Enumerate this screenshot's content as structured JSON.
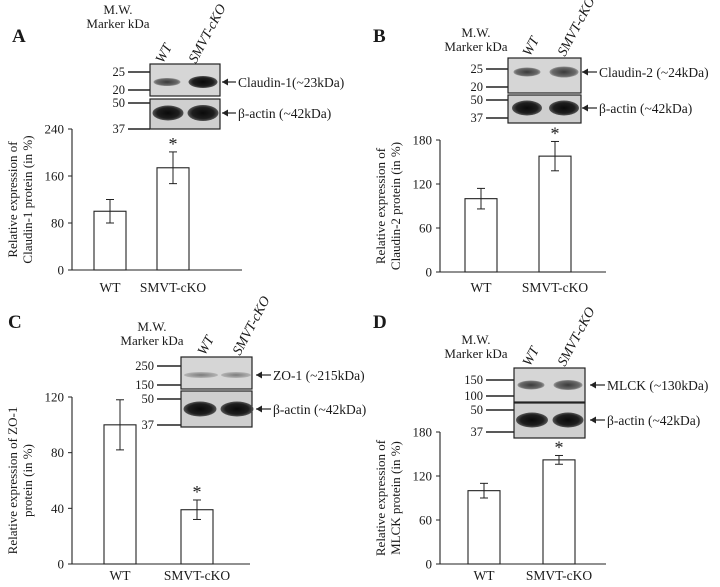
{
  "chart_data": [
    {
      "panel": "A",
      "type": "bar",
      "categories": [
        "WT",
        "SMVT-cKO"
      ],
      "values": [
        100,
        174
      ],
      "errors": [
        20,
        27
      ],
      "significance": [
        "",
        "*"
      ],
      "ylim": [
        0,
        240
      ],
      "yticks": [
        "0",
        "80",
        "160",
        "240"
      ],
      "ylabel": [
        "Relative expression of",
        "Claudin-1 protein (in %)"
      ],
      "blot": {
        "header": [
          "M.W.",
          "Marker kDa"
        ],
        "lanes": [
          "WT",
          "SMVT-cKO"
        ],
        "rows": [
          {
            "markers": [
              "25",
              "20"
            ],
            "label": "Claudin-1(~23kDa)"
          },
          {
            "markers": [
              "50",
              "37"
            ],
            "label": "β-actin (~42kDa)"
          }
        ]
      }
    },
    {
      "panel": "B",
      "type": "bar",
      "categories": [
        "WT",
        "SMVT-cKO"
      ],
      "values": [
        100,
        158
      ],
      "errors": [
        14,
        20
      ],
      "significance": [
        "",
        "*"
      ],
      "ylim": [
        0,
        180
      ],
      "yticks": [
        "0",
        "60",
        "120",
        "180"
      ],
      "ylabel": [
        "Relative expression of",
        "Claudin-2 protein (in %)"
      ],
      "blot": {
        "header": [
          "M.W.",
          "Marker kDa"
        ],
        "lanes": [
          "WT",
          "SMVT-cKO"
        ],
        "rows": [
          {
            "markers": [
              "25",
              "20"
            ],
            "label": "Claudin-2 (~24kDa)"
          },
          {
            "markers": [
              "50",
              "37"
            ],
            "label": "β-actin (~42kDa)"
          }
        ]
      }
    },
    {
      "panel": "C",
      "type": "bar",
      "categories": [
        "WT",
        "SMVT-cKO"
      ],
      "values": [
        100,
        39
      ],
      "errors": [
        18,
        7
      ],
      "significance": [
        "",
        "*"
      ],
      "ylim": [
        0,
        120
      ],
      "yticks": [
        "0",
        "40",
        "80",
        "120"
      ],
      "ylabel": [
        "Relative expression of ZO-1",
        "protein (in %)"
      ],
      "blot": {
        "header": [
          "M.W.",
          "Marker kDa"
        ],
        "lanes": [
          "WT",
          "SMVT-cKO"
        ],
        "rows": [
          {
            "markers": [
              "250",
              "150"
            ],
            "label": "ZO-1 (~215kDa)"
          },
          {
            "markers": [
              "50",
              "37"
            ],
            "label": "β-actin (~42kDa)"
          }
        ]
      }
    },
    {
      "panel": "D",
      "type": "bar",
      "categories": [
        "WT",
        "SMVT-cKO"
      ],
      "values": [
        100,
        142
      ],
      "errors": [
        10,
        6
      ],
      "significance": [
        "",
        "*"
      ],
      "ylim": [
        0,
        180
      ],
      "yticks": [
        "0",
        "60",
        "120",
        "180"
      ],
      "ylabel": [
        "Relative expression of",
        "MLCK protein (in %)"
      ],
      "blot": {
        "header": [
          "M.W.",
          "Marker kDa"
        ],
        "lanes": [
          "WT",
          "SMVT-cKO"
        ],
        "rows": [
          {
            "markers": [
              "150",
              "100"
            ],
            "label": "MLCK (~130kDa)"
          },
          {
            "markers": [
              "50",
              "37"
            ],
            "label": "β-actin (~42kDa)"
          }
        ]
      }
    }
  ]
}
